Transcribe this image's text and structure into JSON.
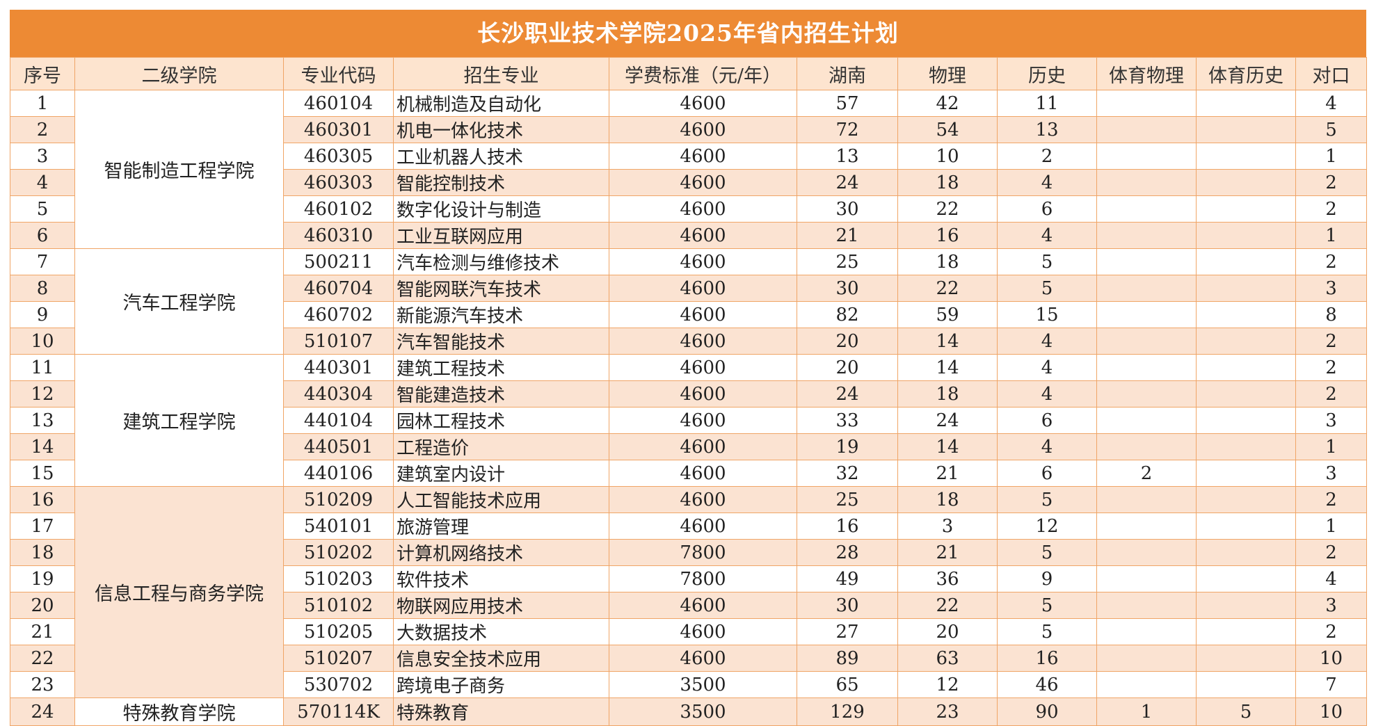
{
  "title": "长沙职业技术学院2025年省内招生计划",
  "headers": {
    "seq": "序号",
    "college": "二级学院",
    "code": "专业代码",
    "major": "招生专业",
    "fee": "学费标准（元/年）",
    "hunan": "湖南",
    "physics": "物理",
    "history": "历史",
    "pe_physics": "体育物理",
    "pe_history": "体育历史",
    "duikou": "对口"
  },
  "colleges": [
    "智能制造工程学院",
    "汽车工程学院",
    "建筑工程学院",
    "信息工程与商务学院",
    "特殊教育学院"
  ],
  "watermark": "长沙职业技术学院",
  "rows": [
    {
      "seq": "1",
      "code": "460104",
      "major": "机械制造及自动化",
      "fee": "4600",
      "hunan": "57",
      "physics": "42",
      "history": "11",
      "pe_physics": "",
      "pe_history": "",
      "duikou": "4"
    },
    {
      "seq": "2",
      "code": "460301",
      "major": "机电一体化技术",
      "fee": "4600",
      "hunan": "72",
      "physics": "54",
      "history": "13",
      "pe_physics": "",
      "pe_history": "",
      "duikou": "5"
    },
    {
      "seq": "3",
      "code": "460305",
      "major": "工业机器人技术",
      "fee": "4600",
      "hunan": "13",
      "physics": "10",
      "history": "2",
      "pe_physics": "",
      "pe_history": "",
      "duikou": "1"
    },
    {
      "seq": "4",
      "code": "460303",
      "major": "智能控制技术",
      "fee": "4600",
      "hunan": "24",
      "physics": "18",
      "history": "4",
      "pe_physics": "",
      "pe_history": "",
      "duikou": "2"
    },
    {
      "seq": "5",
      "code": "460102",
      "major": "数字化设计与制造",
      "fee": "4600",
      "hunan": "30",
      "physics": "22",
      "history": "6",
      "pe_physics": "",
      "pe_history": "",
      "duikou": "2"
    },
    {
      "seq": "6",
      "code": "460310",
      "major": "工业互联网应用",
      "fee": "4600",
      "hunan": "21",
      "physics": "16",
      "history": "4",
      "pe_physics": "",
      "pe_history": "",
      "duikou": "1"
    },
    {
      "seq": "7",
      "code": "500211",
      "major": "汽车检测与维修技术",
      "fee": "4600",
      "hunan": "25",
      "physics": "18",
      "history": "5",
      "pe_physics": "",
      "pe_history": "",
      "duikou": "2"
    },
    {
      "seq": "8",
      "code": "460704",
      "major": "智能网联汽车技术",
      "fee": "4600",
      "hunan": "30",
      "physics": "22",
      "history": "5",
      "pe_physics": "",
      "pe_history": "",
      "duikou": "3"
    },
    {
      "seq": "9",
      "code": "460702",
      "major": "新能源汽车技术",
      "fee": "4600",
      "hunan": "82",
      "physics": "59",
      "history": "15",
      "pe_physics": "",
      "pe_history": "",
      "duikou": "8"
    },
    {
      "seq": "10",
      "code": "510107",
      "major": "汽车智能技术",
      "fee": "4600",
      "hunan": "20",
      "physics": "14",
      "history": "4",
      "pe_physics": "",
      "pe_history": "",
      "duikou": "2"
    },
    {
      "seq": "11",
      "code": "440301",
      "major": "建筑工程技术",
      "fee": "4600",
      "hunan": "20",
      "physics": "14",
      "history": "4",
      "pe_physics": "",
      "pe_history": "",
      "duikou": "2"
    },
    {
      "seq": "12",
      "code": "440304",
      "major": "智能建造技术",
      "fee": "4600",
      "hunan": "24",
      "physics": "18",
      "history": "4",
      "pe_physics": "",
      "pe_history": "",
      "duikou": "2"
    },
    {
      "seq": "13",
      "code": "440104",
      "major": "园林工程技术",
      "fee": "4600",
      "hunan": "33",
      "physics": "24",
      "history": "6",
      "pe_physics": "",
      "pe_history": "",
      "duikou": "3"
    },
    {
      "seq": "14",
      "code": "440501",
      "major": "工程造价",
      "fee": "4600",
      "hunan": "19",
      "physics": "14",
      "history": "4",
      "pe_physics": "",
      "pe_history": "",
      "duikou": "1"
    },
    {
      "seq": "15",
      "code": "440106",
      "major": "建筑室内设计",
      "fee": "4600",
      "hunan": "32",
      "physics": "21",
      "history": "6",
      "pe_physics": "2",
      "pe_history": "",
      "duikou": "3"
    },
    {
      "seq": "16",
      "code": "510209",
      "major": "人工智能技术应用",
      "fee": "4600",
      "hunan": "25",
      "physics": "18",
      "history": "5",
      "pe_physics": "",
      "pe_history": "",
      "duikou": "2"
    },
    {
      "seq": "17",
      "code": "540101",
      "major": "旅游管理",
      "fee": "4600",
      "hunan": "16",
      "physics": "3",
      "history": "12",
      "pe_physics": "",
      "pe_history": "",
      "duikou": "1"
    },
    {
      "seq": "18",
      "code": "510202",
      "major": "计算机网络技术",
      "fee": "7800",
      "hunan": "28",
      "physics": "21",
      "history": "5",
      "pe_physics": "",
      "pe_history": "",
      "duikou": "2"
    },
    {
      "seq": "19",
      "code": "510203",
      "major": "软件技术",
      "fee": "7800",
      "hunan": "49",
      "physics": "36",
      "history": "9",
      "pe_physics": "",
      "pe_history": "",
      "duikou": "4"
    },
    {
      "seq": "20",
      "code": "510102",
      "major": "物联网应用技术",
      "fee": "4600",
      "hunan": "30",
      "physics": "22",
      "history": "5",
      "pe_physics": "",
      "pe_history": "",
      "duikou": "3"
    },
    {
      "seq": "21",
      "code": "510205",
      "major": "大数据技术",
      "fee": "4600",
      "hunan": "27",
      "physics": "20",
      "history": "5",
      "pe_physics": "",
      "pe_history": "",
      "duikou": "2"
    },
    {
      "seq": "22",
      "code": "510207",
      "major": "信息安全技术应用",
      "fee": "4600",
      "hunan": "89",
      "physics": "63",
      "history": "16",
      "pe_physics": "",
      "pe_history": "",
      "duikou": "10"
    },
    {
      "seq": "23",
      "code": "530702",
      "major": "跨境电子商务",
      "fee": "3500",
      "hunan": "65",
      "physics": "12",
      "history": "46",
      "pe_physics": "",
      "pe_history": "",
      "duikou": "7"
    },
    {
      "seq": "24",
      "code": "570114K",
      "major": "特殊教育",
      "fee": "3500",
      "hunan": "129",
      "physics": "23",
      "history": "90",
      "pe_physics": "1",
      "pe_history": "5",
      "duikou": "10"
    }
  ],
  "colors": {
    "accent": "#ed8a34",
    "band": "#fbe3d2",
    "header_bg": "#fde4cf",
    "border": "#f0a566"
  }
}
